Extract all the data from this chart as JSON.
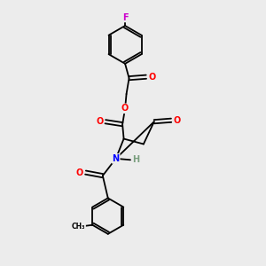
{
  "bg_color": "#ececec",
  "bond_color": "#000000",
  "atom_colors": {
    "O": "#ff0000",
    "N": "#0000ff",
    "F": "#cc00cc",
    "H": "#7a9e7e",
    "C": "#000000"
  }
}
